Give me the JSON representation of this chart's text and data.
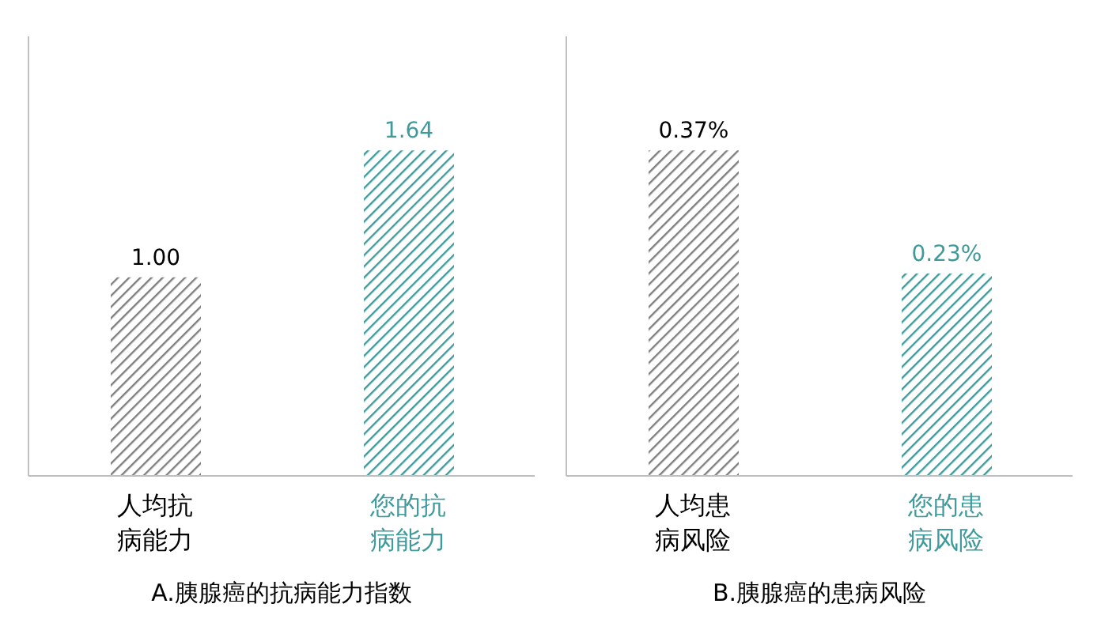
{
  "chart_data": [
    {
      "type": "bar",
      "title": "A.胰腺癌的抗病能力指数",
      "categories": [
        "人均抗病能力",
        "您的抗病能力"
      ],
      "values": [
        1.0,
        1.64
      ],
      "colors": [
        "#7f7f7f",
        "#3f9a9c"
      ],
      "value_labels": [
        "1.00",
        "1.64"
      ],
      "grid": false,
      "legend": false
    },
    {
      "type": "bar",
      "title": "B.胰腺癌的患病风险",
      "categories": [
        "人均患病风险",
        "您的患病风险"
      ],
      "values": [
        0.37,
        0.23
      ],
      "colors": [
        "#7f7f7f",
        "#3f9a9c"
      ],
      "value_labels": [
        "0.37%",
        "0.23%"
      ],
      "grid": false,
      "legend": false
    }
  ]
}
